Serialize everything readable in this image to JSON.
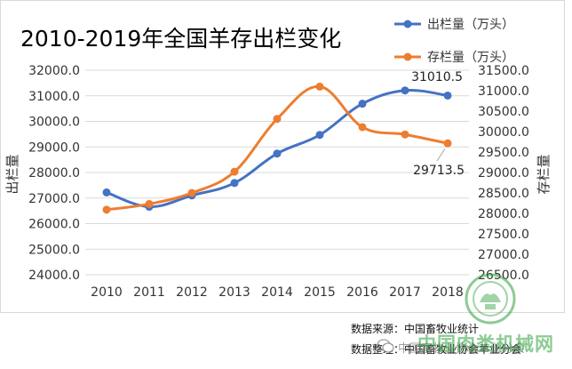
{
  "chart_data": {
    "type": "line",
    "title": "2010-2019年全国羊存出栏变化",
    "categories": [
      "2010",
      "2011",
      "2012",
      "2013",
      "2014",
      "2015",
      "2016",
      "2017",
      "2018"
    ],
    "y_left": {
      "label": "出栏量",
      "min": 24000,
      "max": 32000,
      "step": 1000,
      "ticks": [
        "24000.0",
        "25000.0",
        "26000.0",
        "27000.0",
        "28000.0",
        "29000.0",
        "30000.0",
        "31000.0",
        "32000.0"
      ]
    },
    "y_right": {
      "label": "存栏量",
      "min": 26500,
      "max": 31500,
      "step": 500,
      "ticks": [
        "26500.0",
        "27000.0",
        "27500.0",
        "28000.0",
        "28500.0",
        "29000.0",
        "29500.0",
        "30000.0",
        "30500.0",
        "31000.0",
        "31500.0"
      ]
    },
    "series": [
      {
        "name": "出栏量（万头）",
        "axis": "left",
        "color": "#4472c4",
        "values": [
          27220,
          26660,
          27100,
          27590,
          28740,
          29470,
          30690,
          31210,
          31010.5
        ],
        "end_label": "31010.5"
      },
      {
        "name": "存栏量（万头）",
        "axis": "right",
        "color": "#ed7d31",
        "values": [
          28090,
          28230,
          28500,
          29020,
          30310,
          31100,
          30110,
          29930,
          29713.5
        ],
        "end_label": "29713.5"
      }
    ],
    "grid": true,
    "legend_position": "top-right"
  },
  "footer": {
    "source": "数据来源：中国畜牧业统计",
    "organizer": "数据整理：中国畜牧业协会羊业分会"
  },
  "watermark": {
    "site": "中国肉类机械网",
    "wechat_name": "中国畜牧业协会羊业分会",
    "icon": "wechat-icon",
    "logo": "logo-seal"
  }
}
